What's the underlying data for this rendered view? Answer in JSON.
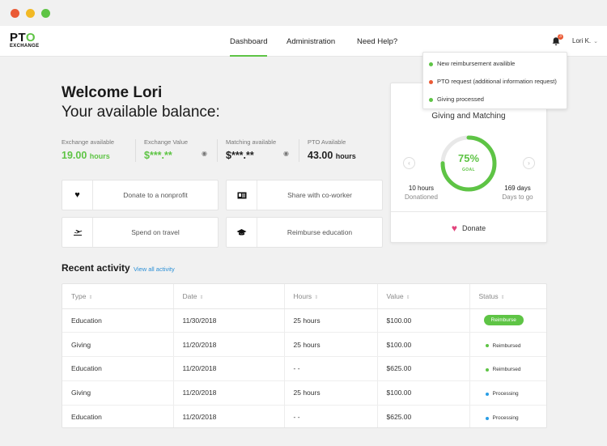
{
  "logo": {
    "main": "PTO",
    "sub": "EXCHANGE"
  },
  "nav": {
    "links": [
      "Dashboard",
      "Administration",
      "Need Help?"
    ],
    "active": "Dashboard"
  },
  "header": {
    "notification_count": "3",
    "user": "Lori K.",
    "user_chevron": "⌄"
  },
  "notifications": [
    {
      "text": "New reimbursement availible",
      "color": "#5ec445"
    },
    {
      "text": "PTO request (additional information request)",
      "color": "#ea5a35"
    },
    {
      "text": "Giving processed",
      "color": "#5ec445"
    }
  ],
  "welcome": {
    "greeting": "Welcome Lori",
    "subtitle": "Your available balance:"
  },
  "stats": [
    {
      "label": "Exchange available",
      "value": "19.00",
      "unit": "hours"
    },
    {
      "label": "Exchange Value",
      "value": "$***.**"
    },
    {
      "label": "Matching available",
      "value": "$***.**"
    },
    {
      "label": "PTO Available",
      "value": "43.00",
      "unit": "hours"
    }
  ],
  "actions": [
    {
      "label": "Donate to a nonprofit",
      "icon": "heart-icon"
    },
    {
      "label": "Share with co-worker",
      "icon": "id-card-icon"
    },
    {
      "label": "Spend on travel",
      "icon": "airplane-icon"
    },
    {
      "label": "Reimburse education",
      "icon": "graduation-cap-icon"
    }
  ],
  "giving": {
    "subtitle": "Giving and Matching",
    "percent": "75%",
    "goal_label": "GOAL",
    "progress": 0.75,
    "left_value": "10 hours",
    "left_label": "Donationed",
    "right_value": "169 days",
    "right_label": "Days to go",
    "donate_label": "Donate"
  },
  "recent": {
    "title": "Recent activity",
    "view_all": "View all activity"
  },
  "table": {
    "headers": [
      "Type",
      "Date",
      "Hours",
      "Value",
      "Status"
    ],
    "rows": [
      {
        "type": "Education",
        "date": "11/30/2018",
        "hours": "25 hours",
        "value": "$100.00",
        "status": "Reimburse",
        "status_kind": "button"
      },
      {
        "type": "Giving",
        "date": "11/20/2018",
        "hours": "25 hours",
        "value": "$100.00",
        "status": "Reimbursed",
        "status_kind": "green"
      },
      {
        "type": "Education",
        "date": "11/20/2018",
        "hours": "- -",
        "value": "$625.00",
        "status": "Reimbursed",
        "status_kind": "green"
      },
      {
        "type": "Giving",
        "date": "11/20/2018",
        "hours": "25 hours",
        "value": "$100.00",
        "status": "Processing",
        "status_kind": "blue"
      },
      {
        "type": "Education",
        "date": "11/20/2018",
        "hours": "- -",
        "value": "$625.00",
        "status": "Processing",
        "status_kind": "blue"
      }
    ]
  },
  "colors": {
    "accent": "#5ec445",
    "alert": "#ea5a35",
    "info": "#2a9ee6",
    "heart": "#e2447c"
  }
}
